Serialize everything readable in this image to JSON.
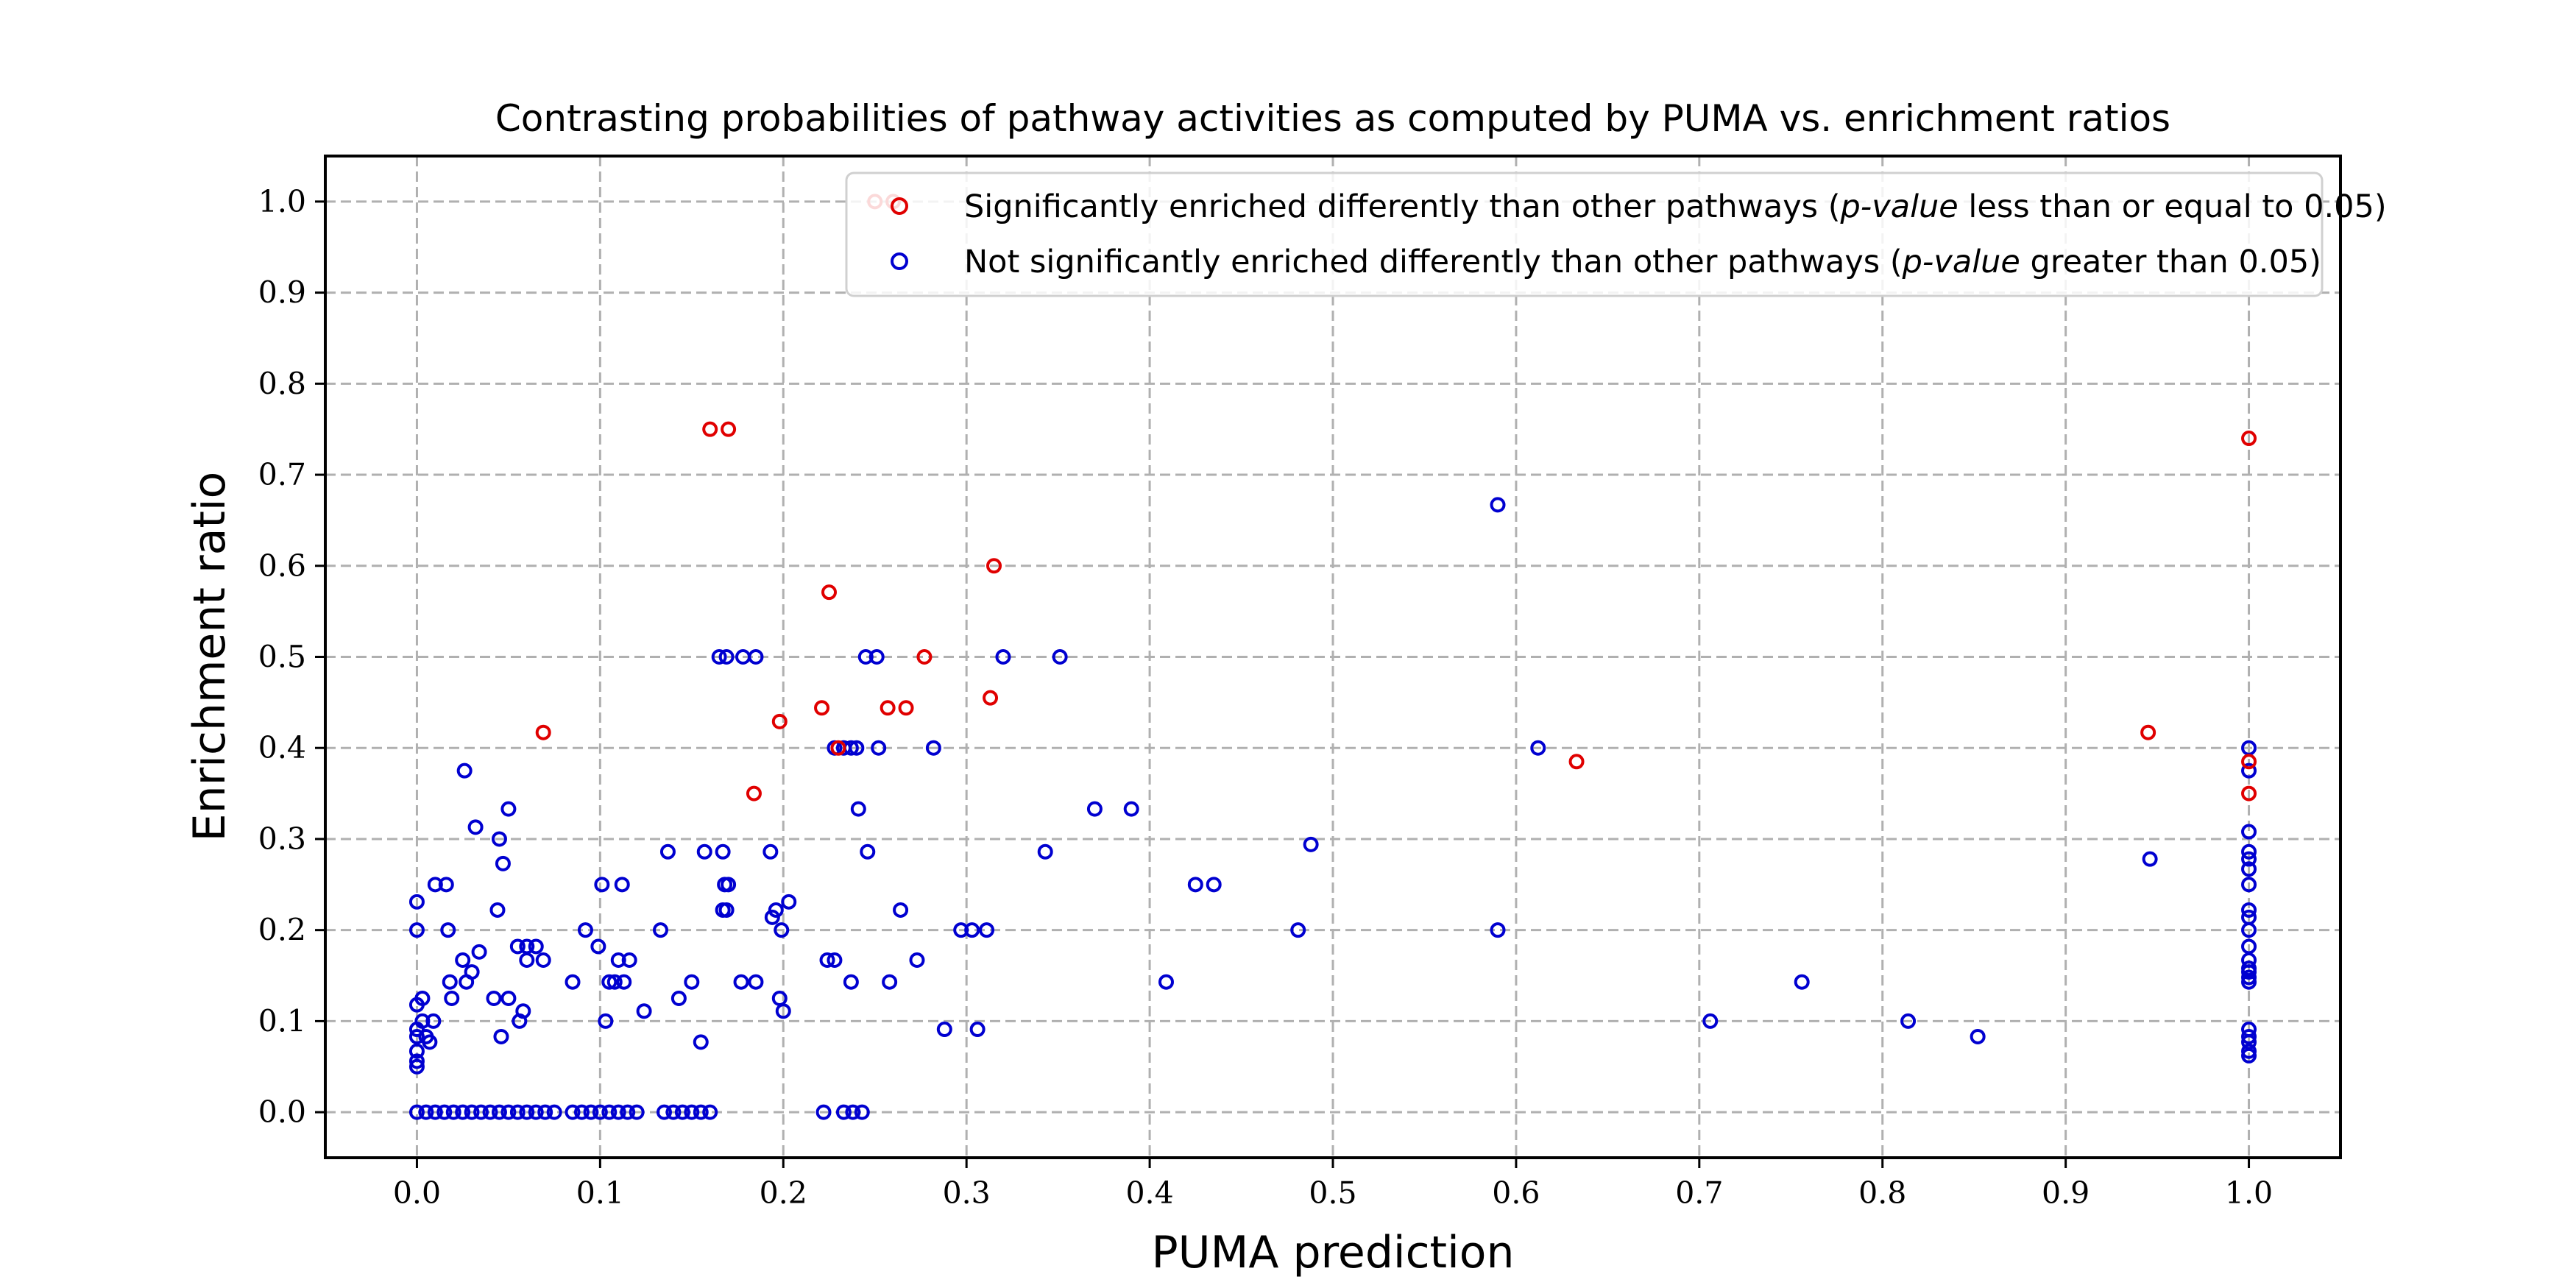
{
  "chart_data": {
    "type": "scatter",
    "title": "Contrasting probabilities of pathway activities as computed by PUMA vs. enrichment ratios",
    "xlabel": "PUMA prediction",
    "ylabel": "Enrichment ratio",
    "xlim": [
      -0.05,
      1.05
    ],
    "ylim": [
      -0.05,
      1.05
    ],
    "xticks": [
      "0.0",
      "0.1",
      "0.2",
      "0.3",
      "0.4",
      "0.5",
      "0.6",
      "0.7",
      "0.8",
      "0.9",
      "1.0"
    ],
    "yticks": [
      "0.0",
      "0.1",
      "0.2",
      "0.3",
      "0.4",
      "0.5",
      "0.6",
      "0.7",
      "0.8",
      "0.9",
      "1.0"
    ],
    "grid": true,
    "legend_position": "top-right",
    "series": [
      {
        "name": "Significantly enriched differently than other pathways (p-value less than or equal to 0.05)",
        "name_parts": [
          "Significantly enriched differently than other pathways (",
          "p-value",
          " less than or equal to 0.05)"
        ],
        "color": "#e00000",
        "points": [
          [
            0.16,
            0.75
          ],
          [
            0.17,
            0.75
          ],
          [
            0.25,
            1.0
          ],
          [
            0.26,
            1.0
          ],
          [
            1.0,
            0.74
          ],
          [
            0.315,
            0.6
          ],
          [
            0.225,
            0.571
          ],
          [
            0.277,
            0.5
          ],
          [
            0.069,
            0.417
          ],
          [
            0.198,
            0.429
          ],
          [
            0.221,
            0.444
          ],
          [
            0.257,
            0.444
          ],
          [
            0.267,
            0.444
          ],
          [
            0.313,
            0.455
          ],
          [
            0.184,
            0.35
          ],
          [
            0.633,
            0.385
          ],
          [
            0.945,
            0.417
          ],
          [
            1.0,
            0.385
          ],
          [
            1.0,
            0.35
          ],
          [
            0.23,
            0.4
          ]
        ]
      },
      {
        "name": "Not significantly enriched differently than other pathways (p-value greater than 0.05)",
        "name_parts": [
          "Not significantly enriched differently than other pathways (",
          "p-value",
          " greater than 0.05)"
        ],
        "color": "#0000d0",
        "points": [
          [
            0.0,
            0.0
          ],
          [
            0.005,
            0.0
          ],
          [
            0.01,
            0.0
          ],
          [
            0.015,
            0.0
          ],
          [
            0.02,
            0.0
          ],
          [
            0.025,
            0.0
          ],
          [
            0.03,
            0.0
          ],
          [
            0.035,
            0.0
          ],
          [
            0.04,
            0.0
          ],
          [
            0.045,
            0.0
          ],
          [
            0.05,
            0.0
          ],
          [
            0.055,
            0.0
          ],
          [
            0.06,
            0.0
          ],
          [
            0.065,
            0.0
          ],
          [
            0.07,
            0.0
          ],
          [
            0.075,
            0.0
          ],
          [
            0.085,
            0.0
          ],
          [
            0.09,
            0.0
          ],
          [
            0.095,
            0.0
          ],
          [
            0.1,
            0.0
          ],
          [
            0.105,
            0.0
          ],
          [
            0.11,
            0.0
          ],
          [
            0.115,
            0.0
          ],
          [
            0.12,
            0.0
          ],
          [
            0.135,
            0.0
          ],
          [
            0.14,
            0.0
          ],
          [
            0.145,
            0.0
          ],
          [
            0.15,
            0.0
          ],
          [
            0.155,
            0.0
          ],
          [
            0.16,
            0.0
          ],
          [
            0.222,
            0.0
          ],
          [
            0.233,
            0.0
          ],
          [
            0.238,
            0.0
          ],
          [
            0.243,
            0.0
          ],
          [
            0.0,
            0.231
          ],
          [
            0.0,
            0.2
          ],
          [
            0.0,
            0.118
          ],
          [
            0.0,
            0.091
          ],
          [
            0.0,
            0.083
          ],
          [
            0.0,
            0.067
          ],
          [
            0.0,
            0.056
          ],
          [
            0.0,
            0.05
          ],
          [
            0.003,
            0.125
          ],
          [
            0.003,
            0.1
          ],
          [
            0.005,
            0.083
          ],
          [
            0.007,
            0.077
          ],
          [
            0.009,
            0.1
          ],
          [
            0.01,
            0.25
          ],
          [
            0.016,
            0.25
          ],
          [
            0.017,
            0.2
          ],
          [
            0.018,
            0.143
          ],
          [
            0.019,
            0.125
          ],
          [
            0.025,
            0.167
          ],
          [
            0.026,
            0.375
          ],
          [
            0.027,
            0.143
          ],
          [
            0.03,
            0.154
          ],
          [
            0.032,
            0.313
          ],
          [
            0.034,
            0.176
          ],
          [
            0.042,
            0.125
          ],
          [
            0.044,
            0.222
          ],
          [
            0.045,
            0.3
          ],
          [
            0.046,
            0.083
          ],
          [
            0.047,
            0.273
          ],
          [
            0.05,
            0.333
          ],
          [
            0.05,
            0.125
          ],
          [
            0.055,
            0.182
          ],
          [
            0.056,
            0.1
          ],
          [
            0.058,
            0.111
          ],
          [
            0.06,
            0.182
          ],
          [
            0.06,
            0.167
          ],
          [
            0.065,
            0.182
          ],
          [
            0.069,
            0.167
          ],
          [
            0.085,
            0.143
          ],
          [
            0.092,
            0.2
          ],
          [
            0.099,
            0.182
          ],
          [
            0.101,
            0.25
          ],
          [
            0.103,
            0.1
          ],
          [
            0.105,
            0.143
          ],
          [
            0.108,
            0.143
          ],
          [
            0.11,
            0.167
          ],
          [
            0.112,
            0.25
          ],
          [
            0.113,
            0.143
          ],
          [
            0.116,
            0.167
          ],
          [
            0.124,
            0.111
          ],
          [
            0.133,
            0.2
          ],
          [
            0.137,
            0.286
          ],
          [
            0.143,
            0.125
          ],
          [
            0.15,
            0.143
          ],
          [
            0.155,
            0.077
          ],
          [
            0.157,
            0.286
          ],
          [
            0.165,
            0.5
          ],
          [
            0.169,
            0.5
          ],
          [
            0.178,
            0.5
          ],
          [
            0.185,
            0.5
          ],
          [
            0.167,
            0.286
          ],
          [
            0.168,
            0.25
          ],
          [
            0.17,
            0.25
          ],
          [
            0.167,
            0.222
          ],
          [
            0.169,
            0.222
          ],
          [
            0.177,
            0.143
          ],
          [
            0.185,
            0.143
          ],
          [
            0.193,
            0.286
          ],
          [
            0.194,
            0.214
          ],
          [
            0.196,
            0.222
          ],
          [
            0.198,
            0.125
          ],
          [
            0.2,
            0.111
          ],
          [
            0.203,
            0.231
          ],
          [
            0.199,
            0.2
          ],
          [
            0.224,
            0.167
          ],
          [
            0.228,
            0.167
          ],
          [
            0.228,
            0.4
          ],
          [
            0.233,
            0.4
          ],
          [
            0.237,
            0.4
          ],
          [
            0.24,
            0.4
          ],
          [
            0.241,
            0.333
          ],
          [
            0.237,
            0.143
          ],
          [
            0.245,
            0.5
          ],
          [
            0.251,
            0.5
          ],
          [
            0.246,
            0.286
          ],
          [
            0.252,
            0.4
          ],
          [
            0.258,
            0.143
          ],
          [
            0.264,
            0.222
          ],
          [
            0.273,
            0.167
          ],
          [
            0.282,
            0.4
          ],
          [
            0.288,
            0.091
          ],
          [
            0.297,
            0.2
          ],
          [
            0.303,
            0.2
          ],
          [
            0.306,
            0.091
          ],
          [
            0.311,
            0.2
          ],
          [
            0.32,
            0.5
          ],
          [
            0.343,
            0.286
          ],
          [
            0.351,
            0.5
          ],
          [
            0.37,
            0.333
          ],
          [
            0.39,
            0.333
          ],
          [
            0.409,
            0.143
          ],
          [
            0.425,
            0.25
          ],
          [
            0.435,
            0.25
          ],
          [
            0.481,
            0.2
          ],
          [
            0.488,
            0.294
          ],
          [
            0.59,
            0.667
          ],
          [
            0.59,
            0.2
          ],
          [
            0.612,
            0.4
          ],
          [
            0.706,
            0.1
          ],
          [
            0.756,
            0.143
          ],
          [
            0.814,
            0.1
          ],
          [
            0.852,
            0.083
          ],
          [
            0.946,
            0.278
          ],
          [
            1.0,
            0.4
          ],
          [
            1.0,
            0.375
          ],
          [
            1.0,
            0.308
          ],
          [
            1.0,
            0.286
          ],
          [
            1.0,
            0.278
          ],
          [
            1.0,
            0.267
          ],
          [
            1.0,
            0.25
          ],
          [
            1.0,
            0.222
          ],
          [
            1.0,
            0.214
          ],
          [
            1.0,
            0.2
          ],
          [
            1.0,
            0.182
          ],
          [
            1.0,
            0.167
          ],
          [
            1.0,
            0.158
          ],
          [
            1.0,
            0.154
          ],
          [
            1.0,
            0.148
          ],
          [
            1.0,
            0.143
          ],
          [
            1.0,
            0.091
          ],
          [
            1.0,
            0.083
          ],
          [
            1.0,
            0.077
          ],
          [
            1.0,
            0.067
          ],
          [
            1.0,
            0.062
          ]
        ]
      }
    ]
  }
}
